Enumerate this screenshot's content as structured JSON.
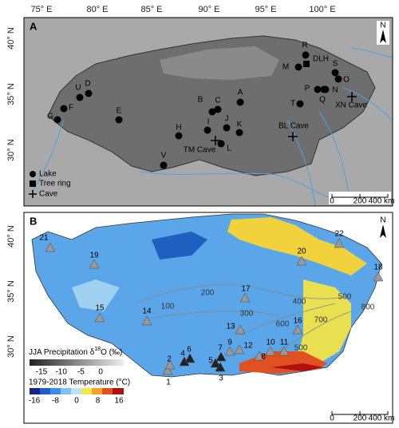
{
  "axes": {
    "longitude_labels": [
      "75° E",
      "80° E",
      "85° E",
      "90° E",
      "95° E",
      "100° E"
    ],
    "latitude_labels_a": [
      "40° N",
      "35° N",
      "30° N"
    ],
    "latitude_labels_b": [
      "40° N",
      "35° N",
      "30° N"
    ]
  },
  "panel_a": {
    "label": "A",
    "sites": [
      "R",
      "DLH",
      "M",
      "S",
      "O",
      "N",
      "P",
      "Q",
      "T",
      "XN Cave",
      "A",
      "B",
      "C",
      "D",
      "U",
      "F",
      "G",
      "E",
      "H",
      "I",
      "J",
      "K",
      "L",
      "TM Cave",
      "BL Cave",
      "V"
    ],
    "legend": [
      "Lake",
      "Tree ring",
      "Cave"
    ],
    "scale": [
      "0",
      "200",
      "400 km"
    ],
    "north": "N"
  },
  "panel_b": {
    "label": "B",
    "sites": [
      "1",
      "2",
      "3",
      "4",
      "5",
      "6",
      "7",
      "8",
      "9",
      "10",
      "11",
      "12",
      "13",
      "14",
      "15",
      "16",
      "17",
      "18",
      "19",
      "20",
      "21",
      "22"
    ],
    "contours": [
      "100",
      "200",
      "300",
      "400",
      "500",
      "600",
      "700",
      "800",
      "500"
    ],
    "legend": {
      "precip_title": [
        "JJA Precipitation δ",
        "18",
        "O (‰)"
      ],
      "precip_ticks": [
        -15,
        -10,
        -5,
        0
      ],
      "temp_title": "1979-2018 Temperature (°C)",
      "temp_ticks": [
        -16,
        -8,
        0,
        8,
        16
      ]
    },
    "scale": [
      "0",
      "200",
      "400 km"
    ],
    "north": "N"
  }
}
